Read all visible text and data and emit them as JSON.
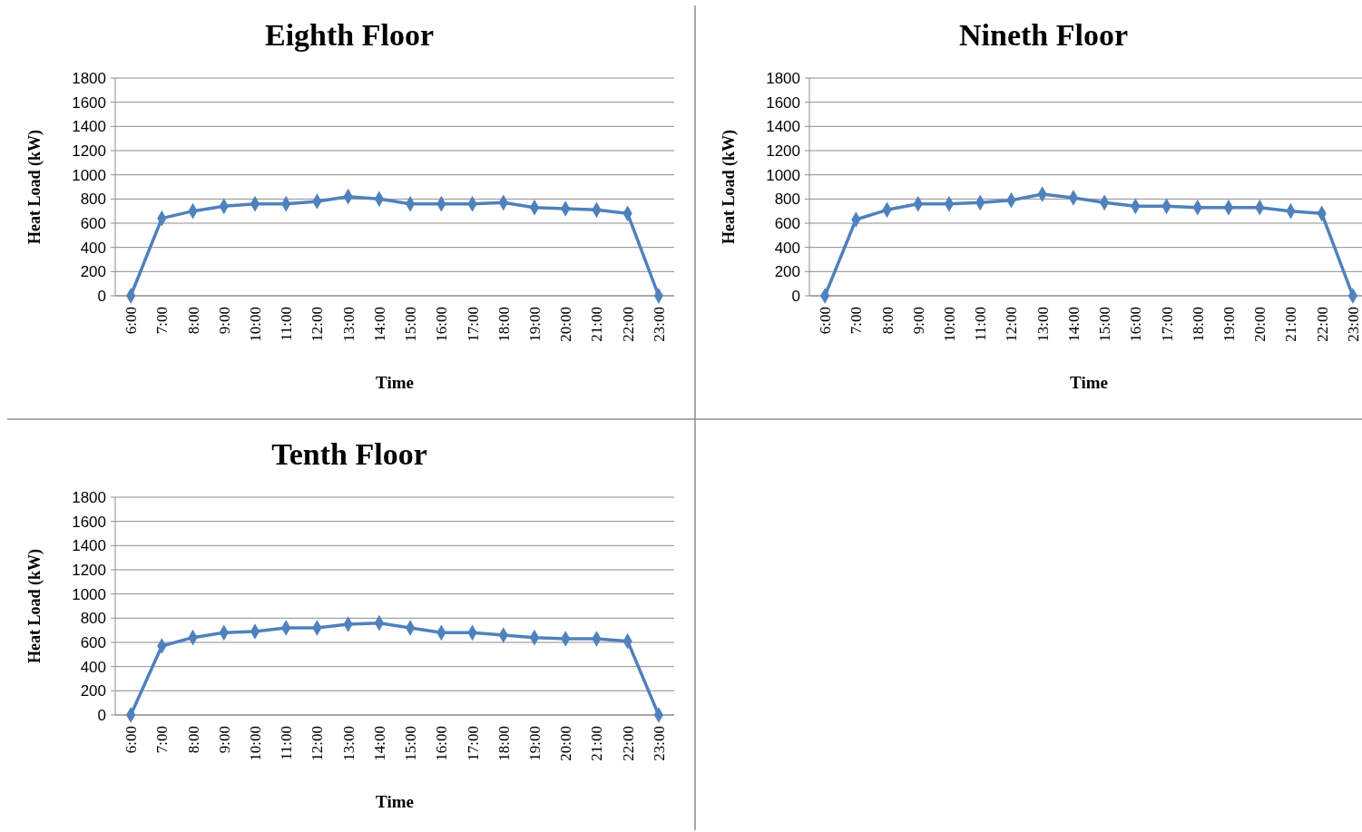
{
  "chart_data": [
    {
      "type": "line",
      "title": "Eighth Floor",
      "xlabel": "Time",
      "ylabel": "Heat Load (kW)",
      "categories": [
        "6:00",
        "7:00",
        "8:00",
        "9:00",
        "10:00",
        "11:00",
        "12:00",
        "13:00",
        "14:00",
        "15:00",
        "16:00",
        "17:00",
        "18:00",
        "19:00",
        "20:00",
        "21:00",
        "22:00",
        "23:00"
      ],
      "series": [
        {
          "color": "#4f81bd",
          "values": [
            0,
            640,
            700,
            740,
            760,
            760,
            780,
            820,
            800,
            760,
            760,
            760,
            770,
            730,
            720,
            710,
            680,
            0
          ]
        }
      ],
      "ylim": [
        0,
        1800
      ],
      "yticks": [
        0,
        200,
        400,
        600,
        800,
        1000,
        1200,
        1400,
        1600,
        1800
      ],
      "grid": "y",
      "marker": "diamond"
    },
    {
      "type": "line",
      "title": "Nineth Floor",
      "xlabel": "Time",
      "ylabel": "Heat Load (kW)",
      "categories": [
        "6:00",
        "7:00",
        "8:00",
        "9:00",
        "10:00",
        "11:00",
        "12:00",
        "13:00",
        "14:00",
        "15:00",
        "16:00",
        "17:00",
        "18:00",
        "19:00",
        "20:00",
        "21:00",
        "22:00",
        "23:00"
      ],
      "series": [
        {
          "color": "#4f81bd",
          "values": [
            0,
            630,
            710,
            760,
            760,
            770,
            790,
            840,
            810,
            770,
            740,
            740,
            730,
            730,
            730,
            700,
            680,
            0
          ]
        }
      ],
      "ylim": [
        0,
        1800
      ],
      "yticks": [
        0,
        200,
        400,
        600,
        800,
        1000,
        1200,
        1400,
        1600,
        1800
      ],
      "grid": "y",
      "marker": "diamond"
    },
    {
      "type": "line",
      "title": "Tenth Floor",
      "xlabel": "Time",
      "ylabel": "Heat Load (kW)",
      "categories": [
        "6:00",
        "7:00",
        "8:00",
        "9:00",
        "10:00",
        "11:00",
        "12:00",
        "13:00",
        "14:00",
        "15:00",
        "16:00",
        "17:00",
        "18:00",
        "19:00",
        "20:00",
        "21:00",
        "22:00",
        "23:00"
      ],
      "series": [
        {
          "color": "#4f81bd",
          "values": [
            0,
            570,
            640,
            680,
            690,
            720,
            720,
            750,
            760,
            720,
            680,
            680,
            660,
            640,
            630,
            630,
            610,
            0
          ]
        }
      ],
      "ylim": [
        0,
        1800
      ],
      "yticks": [
        0,
        200,
        400,
        600,
        800,
        1000,
        1200,
        1400,
        1600,
        1800
      ],
      "grid": "y",
      "marker": "diamond"
    }
  ]
}
